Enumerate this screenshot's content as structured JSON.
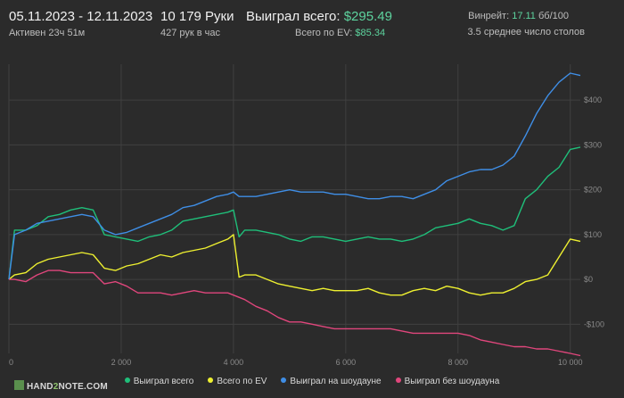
{
  "header": {
    "dates": "05.11.2023 - 12.11.2023",
    "active": "Активен 23ч 51м",
    "hands": "10 179 Руки",
    "hands_rate": "427 рук в час",
    "won_label": "Выиграл всего:",
    "won_value": "$295.49",
    "ev_label": "Всего по EV:",
    "ev_value": "$85.34",
    "winrate_label": "Винрейт:",
    "winrate_value": "17.11",
    "winrate_unit": "бб/100",
    "tables": "3.5 среднее число столов"
  },
  "watermark": {
    "part1": "HAND",
    "part2": "2",
    "part3": "NOTE.COM"
  },
  "colors": {
    "won_total": "#1fbf7a",
    "ev_total": "#eef030",
    "showdown": "#3f8ee6",
    "non_showdown": "#e0467c",
    "accent": "#5dd39e"
  },
  "chart_data": {
    "type": "line",
    "xlim": [
      0,
      10179
    ],
    "ylim": [
      -165,
      480
    ],
    "x_ticks": [
      0,
      2000,
      4000,
      6000,
      8000,
      10000
    ],
    "x_tick_labels": [
      "0",
      "2 000",
      "4 000",
      "6 000",
      "8 000",
      "10 000"
    ],
    "y_ticks": [
      400,
      300,
      200,
      100,
      0,
      -100
    ],
    "y_tick_labels": [
      "$400",
      "$300",
      "$200",
      "$100",
      "$0",
      "-$100"
    ],
    "grid": true,
    "legend_position": "bottom",
    "x": [
      0,
      100,
      300,
      500,
      700,
      900,
      1100,
      1300,
      1500,
      1700,
      1900,
      2100,
      2300,
      2500,
      2700,
      2900,
      3100,
      3300,
      3500,
      3700,
      3900,
      4000,
      4100,
      4200,
      4400,
      4600,
      4800,
      5000,
      5200,
      5400,
      5600,
      5800,
      6000,
      6200,
      6400,
      6600,
      6800,
      7000,
      7200,
      7400,
      7600,
      7800,
      8000,
      8200,
      8400,
      8600,
      8800,
      9000,
      9200,
      9400,
      9600,
      9800,
      10000,
      10179
    ],
    "series": [
      {
        "name": "Выиграл всего",
        "color": "#1fbf7a",
        "values": [
          0,
          110,
          110,
          120,
          140,
          145,
          155,
          160,
          155,
          100,
          95,
          90,
          85,
          95,
          100,
          110,
          130,
          135,
          140,
          145,
          150,
          155,
          95,
          110,
          110,
          105,
          100,
          90,
          85,
          95,
          95,
          90,
          85,
          90,
          95,
          90,
          90,
          85,
          90,
          100,
          115,
          120,
          125,
          135,
          125,
          120,
          110,
          120,
          180,
          200,
          230,
          250,
          290,
          295
        ]
      },
      {
        "name": "Всего по EV",
        "color": "#eef030",
        "values": [
          0,
          10,
          15,
          35,
          45,
          50,
          55,
          60,
          55,
          25,
          20,
          30,
          35,
          45,
          55,
          50,
          60,
          65,
          70,
          80,
          90,
          100,
          5,
          10,
          10,
          0,
          -10,
          -15,
          -20,
          -25,
          -20,
          -25,
          -25,
          -25,
          -20,
          -30,
          -35,
          -35,
          -25,
          -20,
          -25,
          -15,
          -20,
          -30,
          -35,
          -30,
          -30,
          -20,
          -5,
          0,
          10,
          50,
          90,
          85
        ]
      },
      {
        "name": "Выиграл на шоудауне",
        "color": "#3f8ee6",
        "values": [
          0,
          100,
          110,
          125,
          130,
          135,
          140,
          145,
          140,
          110,
          100,
          105,
          115,
          125,
          135,
          145,
          160,
          165,
          175,
          185,
          190,
          195,
          185,
          185,
          185,
          190,
          195,
          200,
          195,
          195,
          195,
          190,
          190,
          185,
          180,
          180,
          185,
          185,
          180,
          190,
          200,
          220,
          230,
          240,
          245,
          245,
          255,
          275,
          320,
          370,
          410,
          440,
          460,
          455
        ]
      },
      {
        "name": "Выиграл без шоудауна",
        "color": "#e0467c",
        "values": [
          0,
          0,
          -5,
          10,
          20,
          20,
          15,
          15,
          15,
          -10,
          -5,
          -15,
          -30,
          -30,
          -30,
          -35,
          -30,
          -25,
          -30,
          -30,
          -30,
          -35,
          -40,
          -45,
          -60,
          -70,
          -85,
          -95,
          -95,
          -100,
          -105,
          -110,
          -110,
          -110,
          -110,
          -110,
          -110,
          -115,
          -120,
          -120,
          -120,
          -120,
          -120,
          -125,
          -135,
          -140,
          -145,
          -150,
          -150,
          -155,
          -155,
          -160,
          -165,
          -170
        ]
      }
    ]
  }
}
